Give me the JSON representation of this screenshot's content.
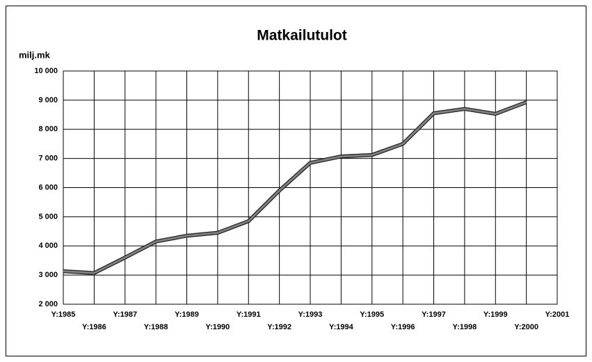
{
  "chart_data": {
    "type": "line",
    "title": "Matkailutulot",
    "y_label": "milj.mk",
    "categories": [
      "Y:1985",
      "Y:1986",
      "Y:1987",
      "Y:1988",
      "Y:1989",
      "Y:1990",
      "Y:1991",
      "Y:1992",
      "Y:1993",
      "Y:1994",
      "Y:1995",
      "Y:1996",
      "Y:1997",
      "Y:1998",
      "Y:1999",
      "Y:2000",
      "Y:2001"
    ],
    "series": [
      {
        "name": "Matkailutulot",
        "color": "#808080",
        "values": [
          3130,
          3070,
          3600,
          4150,
          4350,
          4450,
          4850,
          5900,
          6850,
          7070,
          7120,
          7500,
          8550,
          8700,
          8530,
          8930,
          null
        ]
      }
    ],
    "ylim": [
      2000,
      10000
    ],
    "yticks": [
      {
        "value": 2000,
        "label": "2 000"
      },
      {
        "value": 3000,
        "label": "3 000"
      },
      {
        "value": 4000,
        "label": "4 000"
      },
      {
        "value": 5000,
        "label": "5 000"
      },
      {
        "value": 6000,
        "label": "6 000"
      },
      {
        "value": 7000,
        "label": "7 000"
      },
      {
        "value": 8000,
        "label": "8 000"
      },
      {
        "value": 9000,
        "label": "9 000"
      },
      {
        "value": 10000,
        "label": "10 000"
      }
    ],
    "grid": true
  }
}
